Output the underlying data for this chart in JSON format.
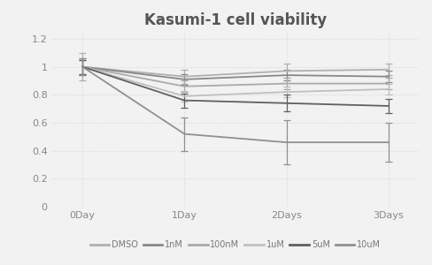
{
  "title": "Kasumi-1 cell viability",
  "x_labels": [
    "0Day",
    "1Day",
    "2Days",
    "3Days"
  ],
  "x_values": [
    0,
    1,
    2,
    3
  ],
  "series": [
    {
      "label": "DMSO",
      "color": "#b0b0b0",
      "values": [
        1.0,
        0.93,
        0.97,
        0.98
      ],
      "errors": [
        0.1,
        0.05,
        0.05,
        0.04
      ]
    },
    {
      "label": "1nM",
      "color": "#888888",
      "values": [
        1.0,
        0.91,
        0.94,
        0.93
      ],
      "errors": [
        0.06,
        0.04,
        0.04,
        0.04
      ]
    },
    {
      "label": "100nM",
      "color": "#aaaaaa",
      "values": [
        1.0,
        0.86,
        0.88,
        0.88
      ],
      "errors": [
        0.05,
        0.04,
        0.04,
        0.04
      ]
    },
    {
      "label": "1uM",
      "color": "#c0c0c0",
      "values": [
        1.0,
        0.79,
        0.82,
        0.84
      ],
      "errors": [
        0.05,
        0.04,
        0.04,
        0.04
      ]
    },
    {
      "label": "5uM",
      "color": "#606060",
      "values": [
        1.0,
        0.76,
        0.74,
        0.72
      ],
      "errors": [
        0.05,
        0.05,
        0.06,
        0.05
      ]
    },
    {
      "label": "10uM",
      "color": "#909090",
      "values": [
        1.0,
        0.52,
        0.46,
        0.46
      ],
      "errors": [
        0.06,
        0.12,
        0.16,
        0.14
      ]
    }
  ],
  "ylim": [
    0,
    1.25
  ],
  "yticks": [
    0,
    0.2,
    0.4,
    0.6,
    0.8,
    1.0,
    1.2
  ],
  "background_color": "#f2f2f2",
  "plot_bg_color": "#f2f2f2",
  "grid_color": "#d8d8d8",
  "title_fontsize": 12,
  "legend_fontsize": 7,
  "tick_fontsize": 8,
  "tick_color": "#888888"
}
